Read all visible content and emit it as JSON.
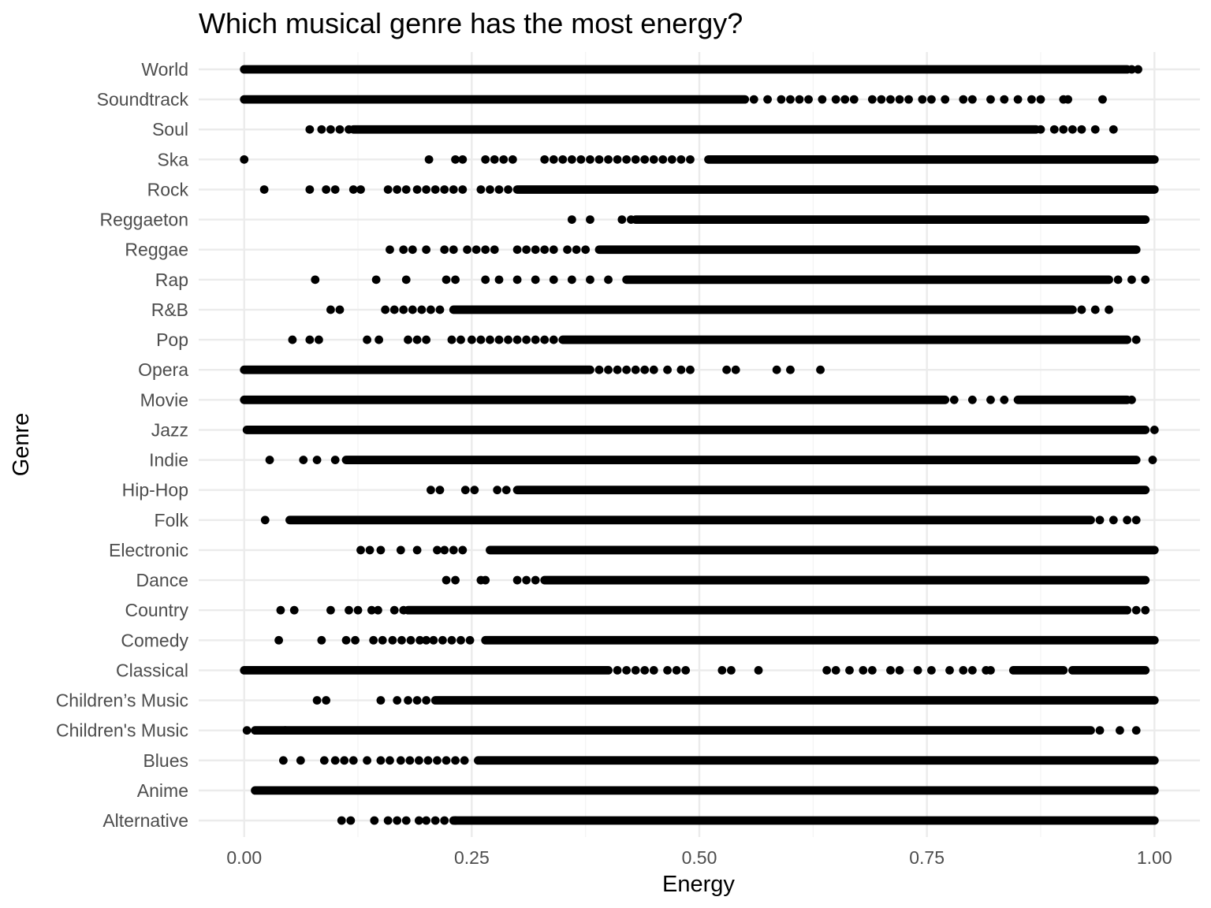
{
  "chart_data": {
    "type": "scatter",
    "title": "Which musical genre has the most energy?",
    "xlabel": "Energy",
    "ylabel": "Genre",
    "xlim": [
      -0.05,
      1.05
    ],
    "x_ticks": [
      0.0,
      0.25,
      0.5,
      0.75,
      1.0
    ],
    "x_tick_labels": [
      "0.00",
      "0.25",
      "0.50",
      "0.75",
      "1.00"
    ],
    "grid": true,
    "legend": "none",
    "point_color": "#000000",
    "categories": [
      "Alternative",
      "Anime",
      "Blues",
      "Children's Music",
      "Children’s Music",
      "Classical",
      "Comedy",
      "Country",
      "Dance",
      "Electronic",
      "Folk",
      "Hip-Hop",
      "Indie",
      "Jazz",
      "Movie",
      "Opera",
      "Pop",
      "R&B",
      "Rap",
      "Reggae",
      "Reggaeton",
      "Rock",
      "Ska",
      "Soul",
      "Soundtrack",
      "World"
    ],
    "series": [
      {
        "genre": "Alternative",
        "dense_ranges": [
          [
            0.23,
            1.0
          ]
        ],
        "points": [
          0.107,
          0.117,
          0.143,
          0.158,
          0.168,
          0.178,
          0.192,
          0.2,
          0.21,
          0.22,
          0.232
        ]
      },
      {
        "genre": "Anime",
        "dense_ranges": [
          [
            0.012,
            1.0
          ]
        ],
        "points": []
      },
      {
        "genre": "Blues",
        "dense_ranges": [
          [
            0.257,
            1.0
          ]
        ],
        "points": [
          0.043,
          0.062,
          0.088,
          0.1,
          0.11,
          0.12,
          0.135,
          0.15,
          0.16,
          0.172,
          0.182,
          0.192,
          0.202,
          0.212,
          0.222,
          0.232,
          0.242
        ]
      },
      {
        "genre": "Children's Music",
        "dense_ranges": [
          [
            0.012,
            0.93
          ]
        ],
        "points": [
          0.003,
          0.045,
          0.94,
          0.962,
          0.98
        ]
      },
      {
        "genre": "Children’s Music",
        "dense_ranges": [
          [
            0.21,
            1.0
          ]
        ],
        "points": [
          0.08,
          0.09,
          0.15,
          0.168,
          0.18,
          0.19,
          0.2
        ]
      },
      {
        "genre": "Classical",
        "dense_ranges": [
          [
            0.0,
            0.4
          ],
          [
            0.845,
            0.9
          ],
          [
            0.91,
            0.99
          ]
        ],
        "points": [
          0.41,
          0.42,
          0.43,
          0.44,
          0.45,
          0.465,
          0.475,
          0.485,
          0.525,
          0.535,
          0.565,
          0.64,
          0.65,
          0.665,
          0.68,
          0.69,
          0.71,
          0.72,
          0.74,
          0.755,
          0.775,
          0.79,
          0.8,
          0.815,
          0.82
        ]
      },
      {
        "genre": "Comedy",
        "dense_ranges": [
          [
            0.265,
            1.0
          ]
        ],
        "points": [
          0.038,
          0.085,
          0.112,
          0.122,
          0.142,
          0.152,
          0.163,
          0.173,
          0.183,
          0.193,
          0.2,
          0.208,
          0.218,
          0.228,
          0.238,
          0.248
        ]
      },
      {
        "genre": "Country",
        "dense_ranges": [
          [
            0.18,
            0.97
          ]
        ],
        "points": [
          0.04,
          0.055,
          0.095,
          0.115,
          0.125,
          0.14,
          0.147,
          0.165,
          0.175,
          0.98,
          0.99
        ]
      },
      {
        "genre": "Dance",
        "dense_ranges": [
          [
            0.33,
            0.99
          ]
        ],
        "points": [
          0.222,
          0.232,
          0.26,
          0.265,
          0.3,
          0.31,
          0.32
        ]
      },
      {
        "genre": "Electronic",
        "dense_ranges": [
          [
            0.27,
            1.0
          ]
        ],
        "points": [
          0.128,
          0.138,
          0.15,
          0.172,
          0.19,
          0.212,
          0.22,
          0.23,
          0.24
        ]
      },
      {
        "genre": "Folk",
        "dense_ranges": [
          [
            0.05,
            0.93
          ]
        ],
        "points": [
          0.023,
          0.94,
          0.955,
          0.97,
          0.98
        ]
      },
      {
        "genre": "Hip-Hop",
        "dense_ranges": [
          [
            0.3,
            0.99
          ]
        ],
        "points": [
          0.205,
          0.215,
          0.243,
          0.253,
          0.278,
          0.288
        ]
      },
      {
        "genre": "Indie",
        "dense_ranges": [
          [
            0.112,
            0.98
          ]
        ],
        "points": [
          0.028,
          0.065,
          0.08,
          0.1,
          0.998
        ]
      },
      {
        "genre": "Jazz",
        "dense_ranges": [
          [
            0.003,
            0.99
          ]
        ],
        "points": [
          1.0
        ]
      },
      {
        "genre": "Movie",
        "dense_ranges": [
          [
            0.0,
            0.77
          ],
          [
            0.85,
            0.97
          ]
        ],
        "points": [
          0.78,
          0.8,
          0.82,
          0.835,
          0.975
        ]
      },
      {
        "genre": "Opera",
        "dense_ranges": [
          [
            0.0,
            0.38
          ]
        ],
        "points": [
          0.39,
          0.4,
          0.41,
          0.42,
          0.43,
          0.44,
          0.45,
          0.465,
          0.48,
          0.49,
          0.53,
          0.54,
          0.585,
          0.6,
          0.633
        ]
      },
      {
        "genre": "Pop",
        "dense_ranges": [
          [
            0.35,
            0.97
          ]
        ],
        "points": [
          0.053,
          0.072,
          0.082,
          0.135,
          0.148,
          0.18,
          0.19,
          0.2,
          0.228,
          0.238,
          0.25,
          0.26,
          0.27,
          0.28,
          0.29,
          0.3,
          0.31,
          0.32,
          0.33,
          0.34,
          0.98
        ]
      },
      {
        "genre": "R&B",
        "dense_ranges": [
          [
            0.23,
            0.91
          ]
        ],
        "points": [
          0.095,
          0.105,
          0.155,
          0.165,
          0.175,
          0.185,
          0.195,
          0.205,
          0.215,
          0.92,
          0.935,
          0.95
        ]
      },
      {
        "genre": "Rap",
        "dense_ranges": [
          [
            0.42,
            0.95
          ]
        ],
        "points": [
          0.078,
          0.145,
          0.178,
          0.222,
          0.232,
          0.265,
          0.28,
          0.3,
          0.32,
          0.34,
          0.36,
          0.38,
          0.4,
          0.96,
          0.975,
          0.99
        ]
      },
      {
        "genre": "Reggae",
        "dense_ranges": [
          [
            0.39,
            0.98
          ]
        ],
        "points": [
          0.16,
          0.175,
          0.185,
          0.2,
          0.22,
          0.23,
          0.245,
          0.255,
          0.265,
          0.275,
          0.3,
          0.31,
          0.32,
          0.33,
          0.34,
          0.355,
          0.365,
          0.375
        ]
      },
      {
        "genre": "Reggaeton",
        "dense_ranges": [
          [
            0.43,
            0.99
          ]
        ],
        "points": [
          0.36,
          0.38,
          0.415,
          0.425
        ]
      },
      {
        "genre": "Rock",
        "dense_ranges": [
          [
            0.3,
            1.0
          ]
        ],
        "points": [
          0.022,
          0.072,
          0.09,
          0.1,
          0.12,
          0.128,
          0.158,
          0.168,
          0.178,
          0.19,
          0.2,
          0.21,
          0.22,
          0.23,
          0.24,
          0.26,
          0.27,
          0.28,
          0.29
        ]
      },
      {
        "genre": "Ska",
        "dense_ranges": [
          [
            0.51,
            1.0
          ]
        ],
        "points": [
          0.0,
          0.203,
          0.232,
          0.24,
          0.265,
          0.275,
          0.285,
          0.295,
          0.33,
          0.34,
          0.35,
          0.36,
          0.37,
          0.38,
          0.39,
          0.4,
          0.41,
          0.42,
          0.43,
          0.44,
          0.45,
          0.46,
          0.47,
          0.48,
          0.49
        ]
      },
      {
        "genre": "Soul",
        "dense_ranges": [
          [
            0.12,
            0.87
          ]
        ],
        "points": [
          0.072,
          0.085,
          0.095,
          0.105,
          0.115,
          0.875,
          0.89,
          0.9,
          0.91,
          0.92,
          0.935,
          0.955
        ]
      },
      {
        "genre": "Soundtrack",
        "dense_ranges": [
          [
            0.0,
            0.55
          ]
        ],
        "points": [
          0.56,
          0.575,
          0.59,
          0.6,
          0.61,
          0.62,
          0.635,
          0.65,
          0.66,
          0.67,
          0.69,
          0.7,
          0.71,
          0.72,
          0.73,
          0.745,
          0.755,
          0.77,
          0.79,
          0.8,
          0.82,
          0.835,
          0.85,
          0.865,
          0.875,
          0.9,
          0.905,
          0.943
        ]
      },
      {
        "genre": "World",
        "dense_ranges": [
          [
            0.0,
            0.97
          ]
        ],
        "points": [
          0.975,
          0.982
        ]
      }
    ]
  }
}
